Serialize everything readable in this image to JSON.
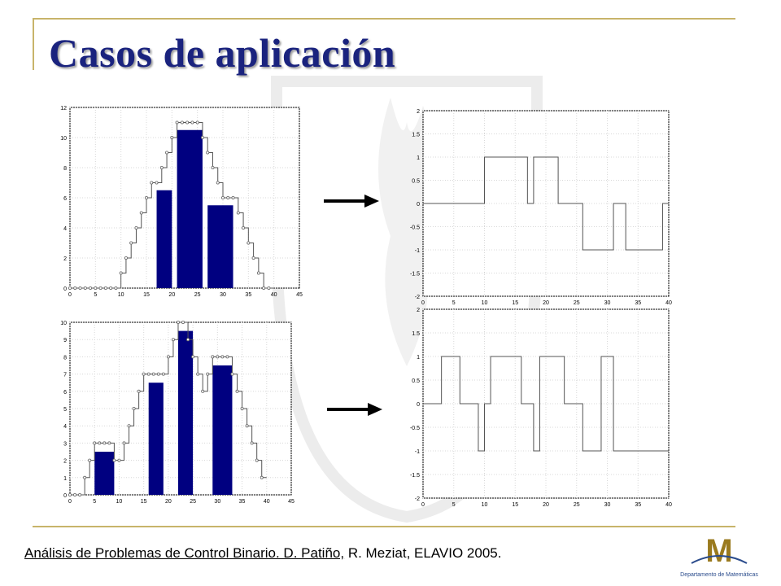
{
  "slide": {
    "title": "Casos de aplicación",
    "citation": {
      "linked": "Análisis de Problemas de Control Binario. D. Patiño,",
      "rest": " R. Meziat, ELAVIO 2005."
    },
    "logo_text": "Departamento de Matemáticas",
    "colors": {
      "title": "#1a237e",
      "frame": "#c8b46a",
      "bar": "#000080",
      "line": "#555555"
    }
  },
  "chart_data": [
    {
      "id": "top-left",
      "type": "bar",
      "xlim": [
        0,
        45
      ],
      "ylim": [
        0,
        12
      ],
      "xticks": [
        0,
        5,
        10,
        15,
        20,
        25,
        30,
        35,
        40,
        45
      ],
      "yticks": [
        0,
        2,
        4,
        6,
        8,
        10,
        12
      ],
      "bars": [
        {
          "x0": 17,
          "x1": 20,
          "value": 6.5
        },
        {
          "x0": 21,
          "x1": 26,
          "value": 10.5
        },
        {
          "x0": 27,
          "x1": 32,
          "value": 5.5
        }
      ],
      "stairs": [
        [
          0,
          0
        ],
        [
          1,
          0
        ],
        [
          2,
          0
        ],
        [
          3,
          0
        ],
        [
          4,
          0
        ],
        [
          5,
          0
        ],
        [
          6,
          0
        ],
        [
          7,
          0
        ],
        [
          8,
          0
        ],
        [
          9,
          0
        ],
        [
          10,
          1
        ],
        [
          11,
          2
        ],
        [
          12,
          3
        ],
        [
          13,
          4
        ],
        [
          14,
          5
        ],
        [
          15,
          6
        ],
        [
          16,
          7
        ],
        [
          17,
          7
        ],
        [
          18,
          8
        ],
        [
          19,
          9
        ],
        [
          20,
          10
        ],
        [
          21,
          11
        ],
        [
          22,
          11
        ],
        [
          23,
          11
        ],
        [
          24,
          11
        ],
        [
          25,
          11
        ],
        [
          26,
          10
        ],
        [
          27,
          9
        ],
        [
          28,
          8
        ],
        [
          29,
          7
        ],
        [
          30,
          6
        ],
        [
          31,
          6
        ],
        [
          32,
          6
        ],
        [
          33,
          5
        ],
        [
          34,
          4
        ],
        [
          35,
          3
        ],
        [
          36,
          2
        ],
        [
          37,
          1
        ],
        [
          38,
          0
        ],
        [
          39,
          0
        ]
      ]
    },
    {
      "id": "bottom-left",
      "type": "bar",
      "xlim": [
        0,
        45
      ],
      "ylim": [
        0,
        10
      ],
      "xticks": [
        0,
        5,
        10,
        15,
        20,
        25,
        30,
        35,
        40,
        45
      ],
      "yticks": [
        0,
        1,
        2,
        3,
        4,
        5,
        6,
        7,
        8,
        9,
        10
      ],
      "bars": [
        {
          "x0": 5,
          "x1": 9,
          "value": 2.5
        },
        {
          "x0": 16,
          "x1": 19,
          "value": 6.5
        },
        {
          "x0": 22,
          "x1": 25,
          "value": 9.5
        },
        {
          "x0": 29,
          "x1": 33,
          "value": 7.5
        }
      ],
      "stairs": [
        [
          0,
          0
        ],
        [
          1,
          0
        ],
        [
          2,
          0
        ],
        [
          3,
          1
        ],
        [
          4,
          2
        ],
        [
          5,
          3
        ],
        [
          6,
          3
        ],
        [
          7,
          3
        ],
        [
          8,
          3
        ],
        [
          9,
          2
        ],
        [
          10,
          2
        ],
        [
          11,
          3
        ],
        [
          12,
          4
        ],
        [
          13,
          5
        ],
        [
          14,
          6
        ],
        [
          15,
          7
        ],
        [
          16,
          7
        ],
        [
          17,
          7
        ],
        [
          18,
          7
        ],
        [
          19,
          7
        ],
        [
          20,
          8
        ],
        [
          21,
          9
        ],
        [
          22,
          10
        ],
        [
          23,
          10
        ],
        [
          24,
          9
        ],
        [
          25,
          8
        ],
        [
          26,
          7
        ],
        [
          27,
          6
        ],
        [
          28,
          7
        ],
        [
          29,
          8
        ],
        [
          30,
          8
        ],
        [
          31,
          8
        ],
        [
          32,
          8
        ],
        [
          33,
          7
        ],
        [
          34,
          6
        ],
        [
          35,
          5
        ],
        [
          36,
          4
        ],
        [
          37,
          3
        ],
        [
          38,
          2
        ],
        [
          39,
          1
        ]
      ]
    },
    {
      "id": "top-right",
      "type": "line",
      "xlim": [
        0,
        40
      ],
      "ylim": [
        -2,
        2
      ],
      "xticks": [
        0,
        5,
        10,
        15,
        20,
        25,
        30,
        35,
        40
      ],
      "yticks": [
        -2,
        -1.5,
        -1,
        -0.5,
        0,
        0.5,
        1,
        1.5,
        2
      ],
      "step": [
        [
          0,
          0
        ],
        [
          10,
          0
        ],
        [
          10,
          1
        ],
        [
          17,
          1
        ],
        [
          17,
          0
        ],
        [
          18,
          0
        ],
        [
          18,
          1
        ],
        [
          22,
          1
        ],
        [
          22,
          0
        ],
        [
          26,
          0
        ],
        [
          26,
          -1
        ],
        [
          31,
          -1
        ],
        [
          31,
          0
        ],
        [
          33,
          0
        ],
        [
          33,
          -1
        ],
        [
          39,
          -1
        ],
        [
          39,
          0
        ],
        [
          40,
          0
        ]
      ]
    },
    {
      "id": "bottom-right",
      "type": "line",
      "xlim": [
        0,
        40
      ],
      "ylim": [
        -2,
        2
      ],
      "xticks": [
        0,
        5,
        10,
        15,
        20,
        25,
        30,
        35,
        40
      ],
      "yticks": [
        -2,
        -1.5,
        -1,
        -0.5,
        0,
        0.5,
        1,
        1.5,
        2
      ],
      "step": [
        [
          0,
          0
        ],
        [
          3,
          0
        ],
        [
          3,
          1
        ],
        [
          6,
          1
        ],
        [
          6,
          0
        ],
        [
          9,
          0
        ],
        [
          9,
          -1
        ],
        [
          10,
          -1
        ],
        [
          10,
          0
        ],
        [
          11,
          0
        ],
        [
          11,
          1
        ],
        [
          16,
          1
        ],
        [
          16,
          0
        ],
        [
          18,
          0
        ],
        [
          18,
          -1
        ],
        [
          19,
          -1
        ],
        [
          19,
          1
        ],
        [
          23,
          1
        ],
        [
          23,
          0
        ],
        [
          26,
          0
        ],
        [
          26,
          -1
        ],
        [
          29,
          -1
        ],
        [
          29,
          1
        ],
        [
          31,
          1
        ],
        [
          31,
          -1
        ],
        [
          40,
          -1
        ]
      ]
    }
  ]
}
